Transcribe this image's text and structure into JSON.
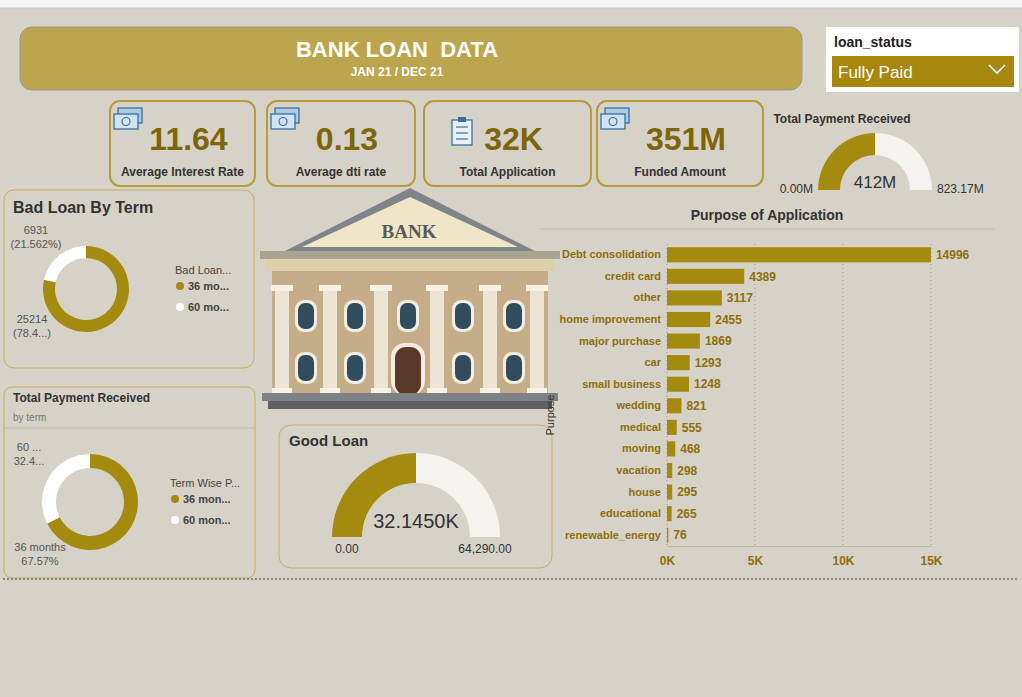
{
  "header": {
    "title": "BANK LOAN  DATA",
    "subtitle": "JAN 21 / DEC 21"
  },
  "slicer": {
    "label": "loan_status",
    "value": "Fully Paid"
  },
  "cards": [
    {
      "value": "11.64",
      "label": "Average Interest Rate"
    },
    {
      "value": "0.13",
      "label": "Average dti rate"
    },
    {
      "value": "32K",
      "label": "Total Application"
    },
    {
      "value": "351M",
      "label": "Funded Amount"
    }
  ],
  "illustration": {
    "label": "BANK"
  },
  "chart_data": [
    {
      "type": "gauge",
      "title": "Total Payment Received",
      "values": [
        412
      ],
      "value_labels": [
        "412M"
      ],
      "ylim": [
        0,
        823.17
      ],
      "yticks": [
        {
          "value": 0,
          "label": "0.00M"
        },
        {
          "value": 823.17,
          "label": "823.17M"
        }
      ],
      "color": "#a48a0e",
      "data_labels": true
    },
    {
      "type": "donut",
      "title": "Bad Loan By Term",
      "legend_title": "Bad Loan...",
      "categories": [
        "36 mo...",
        "60 mo..."
      ],
      "values": [
        25214,
        6931
      ],
      "value_labels": [
        "25214\n(78.4...)",
        "6931\n(21.562%)"
      ],
      "colors": [
        "#a48a0e",
        "#ffffff"
      ],
      "legend": "right",
      "data_labels": true
    },
    {
      "type": "donut",
      "title": "Total Payment Received",
      "subtitle": "by term",
      "legend_title": "Term Wise P...",
      "categories": [
        "36 mon...",
        "60 mon..."
      ],
      "values": [
        67.57,
        32.43
      ],
      "value_labels": [
        "36 months\n67.57%",
        "60 ...\n32.4..."
      ],
      "colors": [
        "#a48a0e",
        "#ffffff"
      ],
      "legend": "right",
      "data_labels": true
    },
    {
      "type": "gauge",
      "title": "Good Loan",
      "values": [
        32145
      ],
      "value_labels": [
        "32.1450K"
      ],
      "ylim": [
        0,
        64290
      ],
      "yticks": [
        {
          "value": 0,
          "label": "0.00"
        },
        {
          "value": 64290,
          "label": "64,290.00"
        }
      ],
      "color": "#a48a0e",
      "data_labels": true
    },
    {
      "type": "bar",
      "orientation": "horizontal",
      "title": "Purpose of Application",
      "ylabel": "Purpose",
      "categories": [
        "Debt consolidation",
        "credit card",
        "other",
        "home improvement",
        "major purchase",
        "car",
        "small business",
        "wedding",
        "medical",
        "moving",
        "vacation",
        "house",
        "educational",
        "renewable_energy"
      ],
      "values": [
        14996,
        4389,
        3117,
        2455,
        1869,
        1293,
        1248,
        821,
        555,
        468,
        298,
        295,
        265,
        76
      ],
      "color": "#a48a0e",
      "xlim": [
        0,
        15000
      ],
      "xticks": [
        {
          "value": 0,
          "label": "0K"
        },
        {
          "value": 5000,
          "label": "5K"
        },
        {
          "value": 10000,
          "label": "10K"
        },
        {
          "value": 15000,
          "label": "15K"
        }
      ],
      "grid": true,
      "data_labels": true
    }
  ]
}
